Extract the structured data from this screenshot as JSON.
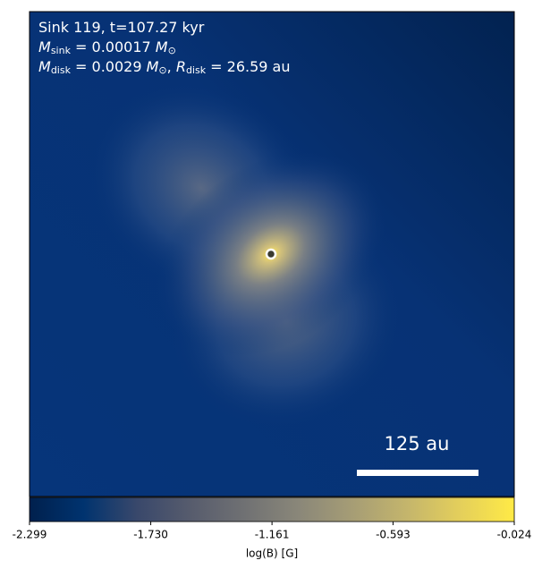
{
  "chart_data": {
    "type": "image",
    "annotations": [
      [
        "Sink 119, t=107.27 kyr"
      ],
      [
        "M",
        "sink",
        " = 0.00017 ",
        "M",
        "⊙"
      ],
      [
        "M",
        "disk",
        " = 0.0029 ",
        "M",
        "⊙",
        ", ",
        "R",
        "disk",
        " = 26.59 au"
      ]
    ],
    "scale_bar_label": "125 au",
    "colorbar": {
      "label": "log(B) [G]",
      "lim": [
        -2.299,
        -0.024
      ],
      "ticks": [
        -2.299,
        {
          "value": -1.73,
          "label": "-1.730"
        },
        -1.161,
        -0.593,
        -0.024
      ],
      "colors": [
        "#00204d",
        "#00336f",
        "#39486b",
        "#575c6d",
        "#707173",
        "#8a8779",
        "#a69d75",
        "#c4b56c",
        "#e4cf5b",
        "#ffea46"
      ]
    }
  }
}
